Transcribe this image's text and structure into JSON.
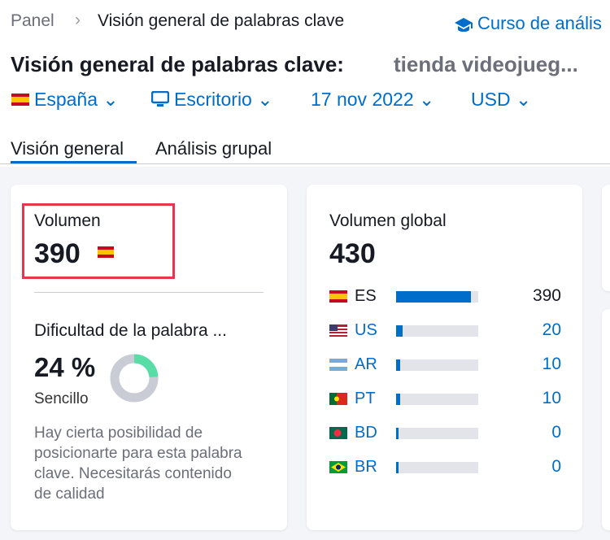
{
  "breadcrumb": [
    "Panel",
    "Visión general de palabras clave"
  ],
  "course_link": "Curso de anális",
  "header": {
    "title": "Visión general de palabras clave:",
    "keyword": "tienda videojueg..."
  },
  "filters": [
    "España",
    "Escritorio",
    "17 nov 2022",
    "USD"
  ],
  "tabs": [
    "Visión general",
    "Análisis grupal"
  ],
  "volume": {
    "label": "Volumen",
    "value": 390
  },
  "difficulty": {
    "label": "Dificultad de la palabra ...",
    "value": 24,
    "value_label": "24 %",
    "rating": "Sencillo",
    "description": "Hay cierta posibilidad de posicionarte para esta palabra clave. Necesitarás contenido de calidad"
  },
  "global": {
    "label": "Volumen global",
    "total": 430,
    "countries": [
      {
        "code": "ES",
        "value": 390
      },
      {
        "code": "US",
        "value": 20
      },
      {
        "code": "AR",
        "value": 10
      },
      {
        "code": "PT",
        "value": 10
      },
      {
        "code": "BD",
        "value": 0
      },
      {
        "code": "BR",
        "value": 0
      }
    ]
  }
}
